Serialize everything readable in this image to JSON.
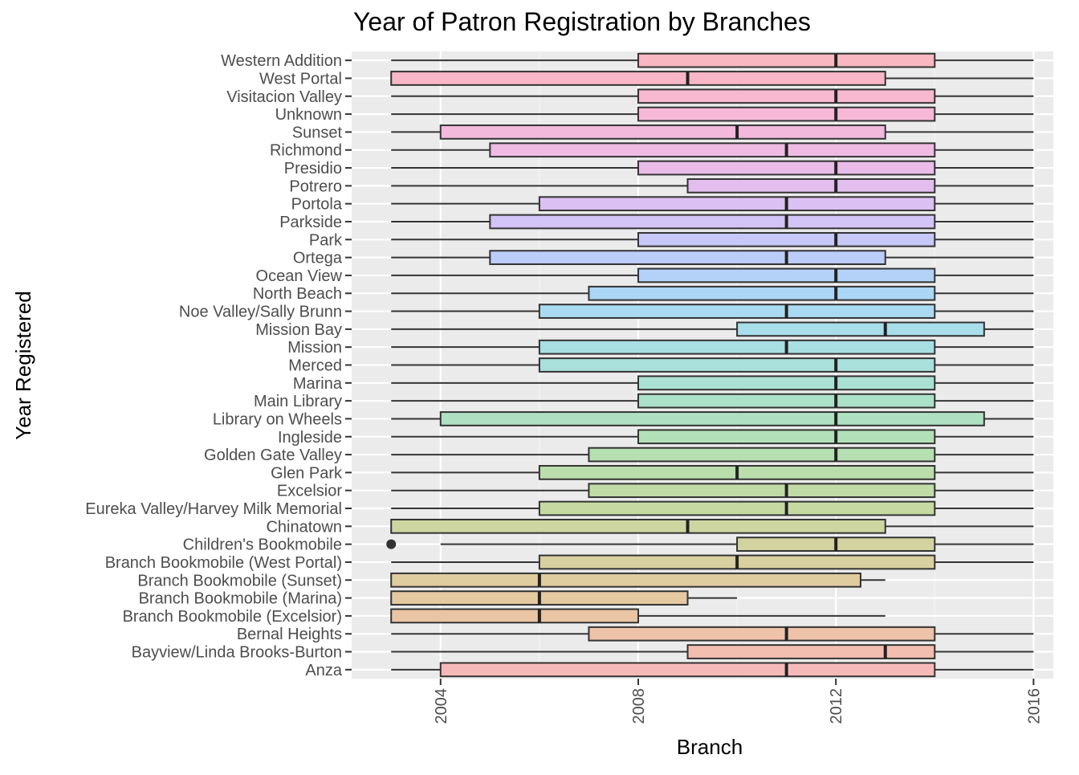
{
  "chart_data": {
    "type": "boxplot",
    "title": "Year of Patron Registration by Branches",
    "xlabel": "Branch",
    "ylabel": "Year Registered",
    "xlim": [
      2002.2,
      2016.4
    ],
    "x_ticks": [
      2004,
      2008,
      2012,
      2016
    ],
    "grid": true,
    "legend": "none",
    "categories": [
      "Western Addition",
      "West Portal",
      "Visitacion Valley",
      "Unknown",
      "Sunset",
      "Richmond",
      "Presidio",
      "Potrero",
      "Portola",
      "Parkside",
      "Park",
      "Ortega",
      "Ocean View",
      "North Beach",
      "Noe Valley/Sally Brunn",
      "Mission Bay",
      "Mission",
      "Merced",
      "Marina",
      "Main Library",
      "Library on Wheels",
      "Ingleside",
      "Golden Gate Valley",
      "Glen Park",
      "Excelsior",
      "Eureka Valley/Harvey Milk Memorial",
      "Chinatown",
      "Children's Bookmobile",
      "Branch Bookmobile (West Portal)",
      "Branch Bookmobile (Sunset)",
      "Branch Bookmobile (Marina)",
      "Branch Bookmobile (Excelsior)",
      "Bernal Heights",
      "Bayview/Linda Brooks-Burton",
      "Anza"
    ],
    "boxes": [
      {
        "min": 2003,
        "q1": 2008,
        "median": 2012,
        "q3": 2014,
        "max": 2016,
        "color": "#F8B7C1"
      },
      {
        "min": 2003,
        "q1": 2003,
        "median": 2009,
        "q3": 2013,
        "max": 2016,
        "color": "#F8B7C8"
      },
      {
        "min": 2003,
        "q1": 2008,
        "median": 2012,
        "q3": 2014,
        "max": 2016,
        "color": "#F7B8D0"
      },
      {
        "min": 2003,
        "q1": 2008,
        "median": 2012,
        "q3": 2014,
        "max": 2016,
        "color": "#F6B8D6"
      },
      {
        "min": 2003,
        "q1": 2004,
        "median": 2010,
        "q3": 2013,
        "max": 2016,
        "color": "#F3B9DD"
      },
      {
        "min": 2003,
        "q1": 2005,
        "median": 2011,
        "q3": 2014,
        "max": 2016,
        "color": "#EFBAE3"
      },
      {
        "min": 2003,
        "q1": 2008,
        "median": 2012,
        "q3": 2014,
        "max": 2016,
        "color": "#EABBE8"
      },
      {
        "min": 2003,
        "q1": 2009,
        "median": 2012,
        "q3": 2014,
        "max": 2016,
        "color": "#E3BDEE"
      },
      {
        "min": 2003,
        "q1": 2006,
        "median": 2011,
        "q3": 2014,
        "max": 2016,
        "color": "#DBC0F3"
      },
      {
        "min": 2003,
        "q1": 2005,
        "median": 2011,
        "q3": 2014,
        "max": 2016,
        "color": "#D2C4F6"
      },
      {
        "min": 2003,
        "q1": 2008,
        "median": 2012,
        "q3": 2014,
        "max": 2016,
        "color": "#C8C8F8"
      },
      {
        "min": 2003,
        "q1": 2005,
        "median": 2011,
        "q3": 2013,
        "max": 2016,
        "color": "#BDCDF9"
      },
      {
        "min": 2003,
        "q1": 2008,
        "median": 2012,
        "q3": 2014,
        "max": 2016,
        "color": "#B4D2F8"
      },
      {
        "min": 2003,
        "q1": 2007,
        "median": 2012,
        "q3": 2014,
        "max": 2016,
        "color": "#ACD6F5"
      },
      {
        "min": 2003,
        "q1": 2006,
        "median": 2011,
        "q3": 2014,
        "max": 2016,
        "color": "#A9DAF1"
      },
      {
        "min": 2003,
        "q1": 2010,
        "median": 2013,
        "q3": 2015,
        "max": 2016,
        "color": "#A8DDEA"
      },
      {
        "min": 2003,
        "q1": 2006,
        "median": 2011,
        "q3": 2014,
        "max": 2016,
        "color": "#A8DFE3"
      },
      {
        "min": 2003,
        "q1": 2006,
        "median": 2012,
        "q3": 2014,
        "max": 2016,
        "color": "#A9E0DB"
      },
      {
        "min": 2003,
        "q1": 2008,
        "median": 2012,
        "q3": 2014,
        "max": 2016,
        "color": "#AAE1D2"
      },
      {
        "min": 2003,
        "q1": 2008,
        "median": 2012,
        "q3": 2014,
        "max": 2016,
        "color": "#ACE1C9"
      },
      {
        "min": 2003,
        "q1": 2004,
        "median": 2012,
        "q3": 2015,
        "max": 2016,
        "color": "#AFE0C1"
      },
      {
        "min": 2003,
        "q1": 2008,
        "median": 2012,
        "q3": 2014,
        "max": 2016,
        "color": "#B2E0B9"
      },
      {
        "min": 2003,
        "q1": 2007,
        "median": 2012,
        "q3": 2014,
        "max": 2016,
        "color": "#B6DFB2"
      },
      {
        "min": 2003,
        "q1": 2006,
        "median": 2010,
        "q3": 2014,
        "max": 2016,
        "color": "#BBDDAB"
      },
      {
        "min": 2003,
        "q1": 2007,
        "median": 2011,
        "q3": 2014,
        "max": 2016,
        "color": "#C1DBA7"
      },
      {
        "min": 2003,
        "q1": 2006,
        "median": 2011,
        "q3": 2014,
        "max": 2016,
        "color": "#C7D9A3"
      },
      {
        "min": 2003,
        "q1": 2003,
        "median": 2009,
        "q3": 2013,
        "max": 2016,
        "color": "#CDD6A1"
      },
      {
        "min": 2004,
        "q1": 2010,
        "median": 2012,
        "q3": 2014,
        "max": 2016,
        "color": "#D3D39F",
        "outliers": [
          2003
        ]
      },
      {
        "min": 2003,
        "q1": 2006,
        "median": 2010,
        "q3": 2014,
        "max": 2016,
        "color": "#D9D09F"
      },
      {
        "min": 2003,
        "q1": 2003,
        "median": 2006,
        "q3": 2012.5,
        "max": 2013,
        "color": "#DFCC9F"
      },
      {
        "min": 2003,
        "q1": 2003,
        "median": 2006,
        "q3": 2009,
        "max": 2010,
        "color": "#E4C9A1"
      },
      {
        "min": 2003,
        "q1": 2003,
        "median": 2006,
        "q3": 2008,
        "max": 2013,
        "color": "#E9C5A4"
      },
      {
        "min": 2003,
        "q1": 2007,
        "median": 2011,
        "q3": 2014,
        "max": 2016,
        "color": "#EEC2A9"
      },
      {
        "min": 2003,
        "q1": 2009,
        "median": 2013,
        "q3": 2014,
        "max": 2016,
        "color": "#F2BEB0"
      },
      {
        "min": 2003,
        "q1": 2004,
        "median": 2011,
        "q3": 2014,
        "max": 2016,
        "color": "#F5BAB8"
      }
    ]
  }
}
